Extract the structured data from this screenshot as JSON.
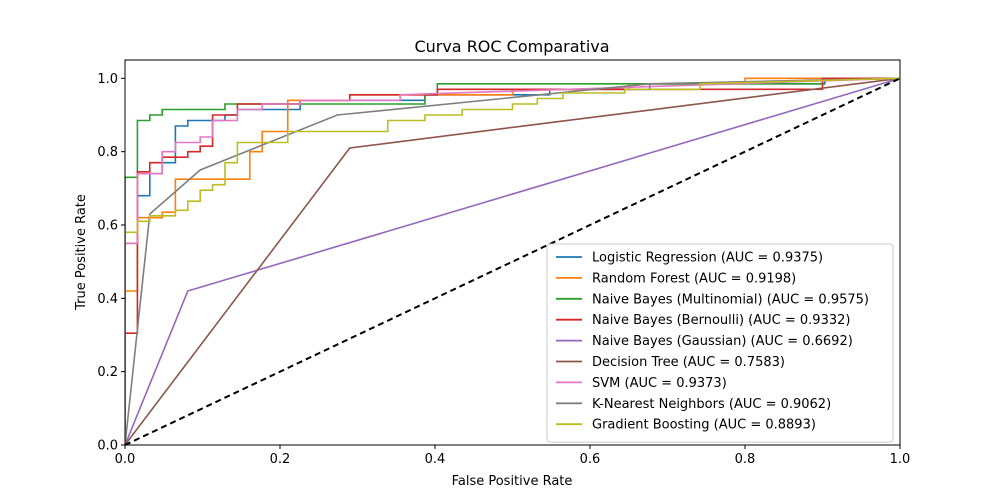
{
  "chart_data": {
    "type": "line",
    "title": "Curva ROC Comparativa",
    "xlabel": "False Positive Rate",
    "ylabel": "True Positive Rate",
    "xlim": [
      0.0,
      1.0
    ],
    "ylim": [
      0.0,
      1.05
    ],
    "xticks": [
      0.0,
      0.2,
      0.4,
      0.6,
      0.8,
      1.0
    ],
    "yticks": [
      0.0,
      0.2,
      0.4,
      0.6,
      0.8,
      1.0
    ],
    "xtick_labels": [
      "0.0",
      "0.2",
      "0.4",
      "0.6",
      "0.8",
      "1.0"
    ],
    "ytick_labels": [
      "0.0",
      "0.2",
      "0.4",
      "0.6",
      "0.8",
      "1.0"
    ],
    "grid": false,
    "legend_position": "lower-right",
    "diagonal": {
      "x": [
        0,
        1
      ],
      "y": [
        0,
        1
      ],
      "color": "#000000",
      "style": "dashed"
    },
    "series": [
      {
        "name": "Logistic Regression (AUC = 0.9375)",
        "color": "#1f77b4",
        "x": [
          0,
          0,
          0.016,
          0.016,
          0.032,
          0.032,
          0.048,
          0.048,
          0.065,
          0.065,
          0.081,
          0.081,
          0.097,
          0.097,
          0.129,
          0.129,
          0.145,
          0.145,
          0.226,
          0.226,
          0.387,
          0.387,
          0.548,
          0.548,
          0.677,
          0.677,
          0.903,
          0.903,
          1.0
        ],
        "y": [
          0,
          0.55,
          0.55,
          0.68,
          0.68,
          0.74,
          0.74,
          0.77,
          0.77,
          0.87,
          0.87,
          0.885,
          0.885,
          0.885,
          0.885,
          0.9,
          0.9,
          0.915,
          0.915,
          0.94,
          0.94,
          0.955,
          0.955,
          0.97,
          0.97,
          0.985,
          0.985,
          1.0,
          1.0
        ]
      },
      {
        "name": "Random Forest (AUC = 0.9198)",
        "color": "#ff7f0e",
        "x": [
          0,
          0,
          0.016,
          0.016,
          0.048,
          0.048,
          0.065,
          0.065,
          0.161,
          0.161,
          0.177,
          0.177,
          0.21,
          0.21,
          0.29,
          0.29,
          0.5,
          0.5,
          0.65,
          0.65,
          0.8,
          0.8,
          1.0
        ],
        "y": [
          0,
          0.42,
          0.42,
          0.62,
          0.62,
          0.635,
          0.635,
          0.725,
          0.725,
          0.8,
          0.8,
          0.855,
          0.855,
          0.94,
          0.94,
          0.955,
          0.955,
          0.97,
          0.97,
          0.985,
          0.985,
          1.0,
          1.0
        ]
      },
      {
        "name": "Naive Bayes (Multinomial) (AUC = 0.9575)",
        "color": "#2ca02c",
        "x": [
          0,
          0,
          0.016,
          0.016,
          0.032,
          0.032,
          0.048,
          0.048,
          0.129,
          0.129,
          0.387,
          0.387,
          0.403,
          0.403,
          0.6,
          0.6,
          0.9,
          0.9,
          1.0
        ],
        "y": [
          0,
          0.73,
          0.73,
          0.885,
          0.885,
          0.9,
          0.9,
          0.915,
          0.915,
          0.93,
          0.93,
          0.955,
          0.955,
          0.985,
          0.985,
          0.985,
          0.985,
          1.0,
          1.0
        ]
      },
      {
        "name": "Naive Bayes (Bernoulli) (AUC = 0.9332)",
        "color": "#d62728",
        "x": [
          0,
          0,
          0.016,
          0.016,
          0.032,
          0.032,
          0.048,
          0.048,
          0.081,
          0.081,
          0.097,
          0.097,
          0.113,
          0.113,
          0.145,
          0.145,
          0.226,
          0.226,
          0.29,
          0.29,
          0.339,
          0.339,
          0.355,
          0.355,
          0.403,
          0.403,
          0.9,
          0.9,
          1.0
        ],
        "y": [
          0,
          0.305,
          0.305,
          0.745,
          0.745,
          0.77,
          0.77,
          0.785,
          0.785,
          0.8,
          0.8,
          0.815,
          0.815,
          0.9,
          0.9,
          0.93,
          0.93,
          0.94,
          0.94,
          0.955,
          0.955,
          0.955,
          0.955,
          0.955,
          0.955,
          0.97,
          0.97,
          1.0,
          1.0
        ]
      },
      {
        "name": "Naive Bayes (Gaussian) (AUC = 0.6692)",
        "color": "#9467bd",
        "x": [
          0,
          0.081,
          1.0
        ],
        "y": [
          0,
          0.42,
          1.0
        ]
      },
      {
        "name": "Decision Tree (AUC = 0.7583)",
        "color": "#8c564b",
        "x": [
          0,
          0.29,
          1.0
        ],
        "y": [
          0,
          0.81,
          1.0
        ]
      },
      {
        "name": "SVM (AUC = 0.9373)",
        "color": "#e377c2",
        "x": [
          0,
          0,
          0.016,
          0.016,
          0.048,
          0.048,
          0.065,
          0.065,
          0.097,
          0.097,
          0.113,
          0.113,
          0.145,
          0.145,
          0.177,
          0.177,
          0.21,
          0.21,
          0.226,
          0.226,
          0.29,
          0.29,
          0.355,
          0.355,
          1.0
        ],
        "y": [
          0,
          0.55,
          0.55,
          0.74,
          0.74,
          0.8,
          0.8,
          0.825,
          0.825,
          0.84,
          0.84,
          0.885,
          0.885,
          0.915,
          0.915,
          0.93,
          0.93,
          0.93,
          0.93,
          0.94,
          0.94,
          0.94,
          0.94,
          0.955,
          1.0
        ]
      },
      {
        "name": "K-Nearest Neighbors (AUC = 0.9062)",
        "color": "#7f7f7f",
        "x": [
          0,
          0.032,
          0.097,
          0.274,
          0.677,
          1.0
        ],
        "y": [
          0,
          0.63,
          0.75,
          0.9,
          0.985,
          1.0
        ]
      },
      {
        "name": "Gradient Boosting (AUC = 0.8893)",
        "color": "#bcbd22",
        "x": [
          0,
          0,
          0.016,
          0.016,
          0.032,
          0.032,
          0.048,
          0.048,
          0.065,
          0.065,
          0.081,
          0.081,
          0.097,
          0.097,
          0.113,
          0.113,
          0.129,
          0.129,
          0.145,
          0.145,
          0.21,
          0.21,
          0.339,
          0.339,
          0.387,
          0.387,
          0.435,
          0.435,
          0.5,
          0.5,
          0.532,
          0.532,
          0.565,
          0.565,
          0.597,
          0.597,
          0.645,
          0.645,
          0.742,
          0.742,
          1.0
        ],
        "y": [
          0,
          0.58,
          0.58,
          0.61,
          0.61,
          0.625,
          0.625,
          0.625,
          0.625,
          0.64,
          0.64,
          0.665,
          0.665,
          0.695,
          0.695,
          0.71,
          0.71,
          0.77,
          0.77,
          0.825,
          0.825,
          0.855,
          0.855,
          0.885,
          0.885,
          0.9,
          0.9,
          0.915,
          0.915,
          0.93,
          0.93,
          0.945,
          0.945,
          0.96,
          0.96,
          0.96,
          0.96,
          0.97,
          0.97,
          0.985,
          1.0
        ]
      }
    ]
  }
}
